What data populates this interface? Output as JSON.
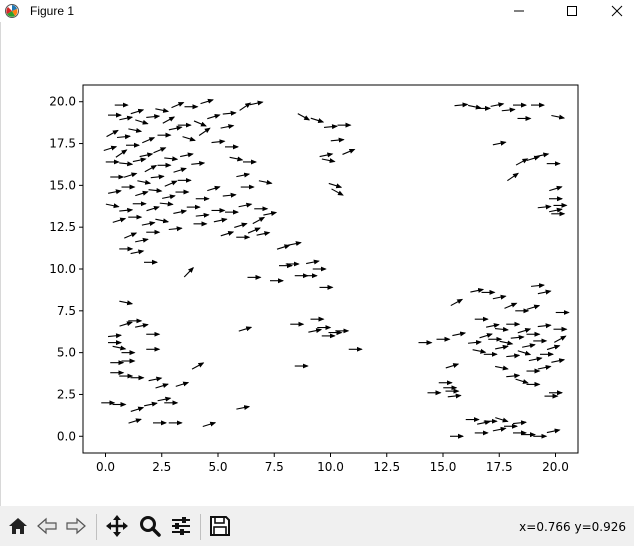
{
  "window": {
    "title": "Figure 1",
    "icons": {
      "app": "matplotlib-icon",
      "minimize": "minimize-icon",
      "maximize": "maximize-icon",
      "close": "close-icon"
    }
  },
  "toolbar": {
    "buttons": [
      {
        "name": "home-button",
        "icon": "home-icon"
      },
      {
        "name": "back-button",
        "icon": "back-arrow-icon"
      },
      {
        "name": "forward-button",
        "icon": "forward-arrow-icon"
      },
      {
        "name": "pan-button",
        "icon": "move-icon"
      },
      {
        "name": "zoom-button",
        "icon": "magnifier-icon"
      },
      {
        "name": "configure-subplots-button",
        "icon": "sliders-icon"
      },
      {
        "name": "save-button",
        "icon": "floppy-disk-icon"
      }
    ],
    "coordinates": "x=0.766 y=0.926"
  },
  "chart_data": {
    "type": "quiver",
    "xlim": [
      -1,
      21
    ],
    "ylim": [
      -1,
      21
    ],
    "xticks": [
      "0.0",
      "2.5",
      "5.0",
      "7.5",
      "10.0",
      "12.5",
      "15.0",
      "17.5",
      "20.0"
    ],
    "yticks": [
      "0.0",
      "2.5",
      "5.0",
      "7.5",
      "10.0",
      "12.5",
      "15.0",
      "17.5",
      "20.0"
    ],
    "grid": false,
    "arrow_color": "#000000",
    "arrows": [
      [
        0.7,
        19.8,
        0
      ],
      [
        1.4,
        19.4,
        0.3
      ],
      [
        2.5,
        19.5,
        -0.2
      ],
      [
        3.2,
        19.8,
        0.4
      ],
      [
        3.8,
        19.7,
        0
      ],
      [
        4.5,
        20.0,
        0.3
      ],
      [
        5.5,
        19.3,
        0.1
      ],
      [
        6.2,
        19.7,
        0.6
      ],
      [
        6.7,
        19.9,
        0.2
      ],
      [
        0.4,
        19.2,
        0
      ],
      [
        0.9,
        19.0,
        0.2
      ],
      [
        1.6,
        18.8,
        -0.3
      ],
      [
        2.1,
        19.1,
        0.1
      ],
      [
        2.8,
        18.9,
        0.5
      ],
      [
        3.5,
        18.6,
        0
      ],
      [
        4.2,
        18.7,
        -0.4
      ],
      [
        4.8,
        19.1,
        0.3
      ],
      [
        5.4,
        18.5,
        0.2
      ],
      [
        0.3,
        18.1,
        0.5
      ],
      [
        0.8,
        17.9,
        0.1
      ],
      [
        1.3,
        18.3,
        -0.2
      ],
      [
        1.9,
        17.7,
        0.4
      ],
      [
        2.6,
        18.0,
        0
      ],
      [
        3.1,
        18.4,
        0.2
      ],
      [
        3.7,
        17.8,
        -0.3
      ],
      [
        4.4,
        18.2,
        0.6
      ],
      [
        5.0,
        17.6,
        0.1
      ],
      [
        0.2,
        17.2,
        0.3
      ],
      [
        0.7,
        16.9,
        0.6
      ],
      [
        1.2,
        17.4,
        0
      ],
      [
        1.8,
        16.8,
        0.2
      ],
      [
        2.4,
        17.1,
        0.4
      ],
      [
        2.9,
        16.6,
        -0.1
      ],
      [
        3.6,
        16.8,
        0.2
      ],
      [
        5.6,
        17.3,
        0
      ],
      [
        0.3,
        16.4,
        0
      ],
      [
        0.9,
        16.3,
        -0.1
      ],
      [
        1.5,
        16.5,
        0.2
      ],
      [
        2.0,
        16.0,
        0.5
      ],
      [
        2.6,
        16.2,
        0
      ],
      [
        3.3,
        15.9,
        0.3
      ],
      [
        4.1,
        16.3,
        0.1
      ],
      [
        5.8,
        16.6,
        -0.2
      ],
      [
        6.4,
        16.4,
        0
      ],
      [
        0.5,
        15.5,
        0
      ],
      [
        1.1,
        15.6,
        0.3
      ],
      [
        1.7,
        15.2,
        -0.2
      ],
      [
        2.3,
        15.5,
        0.1
      ],
      [
        2.9,
        15.1,
        0.4
      ],
      [
        3.5,
        15.3,
        0
      ],
      [
        6.1,
        15.6,
        0.2
      ],
      [
        7.1,
        15.2,
        -0.2
      ],
      [
        0.4,
        14.6,
        0.2
      ],
      [
        1.0,
        14.9,
        0
      ],
      [
        1.6,
        14.5,
        0.3
      ],
      [
        2.2,
        14.7,
        -0.1
      ],
      [
        2.8,
        14.3,
        0.2
      ],
      [
        3.4,
        14.6,
        0
      ],
      [
        4.3,
        14.2,
        0
      ],
      [
        4.8,
        14.8,
        0.3
      ],
      [
        5.5,
        14.4,
        0.1
      ],
      [
        6.3,
        14.9,
        0
      ],
      [
        0.3,
        13.8,
        -0.2
      ],
      [
        0.9,
        13.5,
        0.1
      ],
      [
        1.5,
        13.9,
        0
      ],
      [
        2.1,
        13.6,
        0.3
      ],
      [
        2.7,
        13.9,
        -0.1
      ],
      [
        3.3,
        13.4,
        0.2
      ],
      [
        3.9,
        13.7,
        0
      ],
      [
        4.3,
        13.2,
        0.1
      ],
      [
        5.0,
        13.5,
        0
      ],
      [
        5.6,
        13.4,
        0
      ],
      [
        6.2,
        13.8,
        0.2
      ],
      [
        6.9,
        13.6,
        0
      ],
      [
        0.6,
        12.9,
        0.3
      ],
      [
        1.3,
        13.1,
        0
      ],
      [
        1.9,
        12.7,
        0.2
      ],
      [
        2.5,
        12.9,
        -0.2
      ],
      [
        3.1,
        12.4,
        0.1
      ],
      [
        4.2,
        12.7,
        0
      ],
      [
        5.1,
        12.9,
        0.2
      ],
      [
        6.0,
        12.6,
        0.3
      ],
      [
        6.8,
        12.9,
        0.5
      ],
      [
        7.3,
        13.3,
        0.2
      ],
      [
        1.1,
        12.0,
        0.4
      ],
      [
        1.6,
        11.7,
        0.2
      ],
      [
        2.1,
        12.2,
        0
      ],
      [
        5.4,
        12.1,
        0.3
      ],
      [
        6.1,
        11.9,
        0
      ],
      [
        6.6,
        12.3,
        0.4
      ],
      [
        7.0,
        12.1,
        0.2
      ],
      [
        0.9,
        11.2,
        0
      ],
      [
        1.4,
        11.0,
        0.2
      ],
      [
        2.0,
        10.4,
        0
      ],
      [
        3.7,
        9.8,
        0.8
      ],
      [
        6.6,
        9.5,
        0
      ],
      [
        7.9,
        11.3,
        0.3
      ],
      [
        8.4,
        11.5,
        0.2
      ],
      [
        8.0,
        10.2,
        0
      ],
      [
        8.3,
        10.3,
        0
      ],
      [
        9.2,
        10.4,
        0.2
      ],
      [
        9.5,
        10.0,
        0
      ],
      [
        9.1,
        9.6,
        0
      ],
      [
        8.7,
        9.6,
        0
      ],
      [
        9.8,
        8.9,
        0
      ],
      [
        7.6,
        9.3,
        0
      ],
      [
        8.8,
        19.1,
        -0.5
      ],
      [
        9.4,
        18.9,
        -0.3
      ],
      [
        10.0,
        18.5,
        0.1
      ],
      [
        10.6,
        18.6,
        0
      ],
      [
        10.3,
        17.7,
        0.1
      ],
      [
        10.8,
        17.0,
        0.4
      ],
      [
        9.8,
        16.8,
        0.2
      ],
      [
        9.9,
        16.5,
        -0.2
      ],
      [
        10.2,
        15.0,
        -0.3
      ],
      [
        10.3,
        14.6,
        -0.5
      ],
      [
        15.8,
        19.8,
        0.1
      ],
      [
        16.4,
        19.7,
        -0.2
      ],
      [
        16.8,
        19.6,
        0
      ],
      [
        17.4,
        19.8,
        0.2
      ],
      [
        17.9,
        19.5,
        0.1
      ],
      [
        18.4,
        19.8,
        0
      ],
      [
        19.2,
        19.8,
        0
      ],
      [
        20.1,
        19.1,
        -0.2
      ],
      [
        18.6,
        19.0,
        0
      ],
      [
        17.5,
        17.5,
        0.2
      ],
      [
        18.1,
        15.5,
        0.6
      ],
      [
        18.5,
        16.4,
        0.5
      ],
      [
        19.0,
        16.6,
        0.3
      ],
      [
        19.4,
        16.8,
        0.2
      ],
      [
        19.9,
        16.3,
        0
      ],
      [
        20.0,
        14.8,
        0.3
      ],
      [
        20.0,
        14.2,
        0
      ],
      [
        20.2,
        13.8,
        0
      ],
      [
        20.0,
        13.5,
        0.2
      ],
      [
        20.1,
        13.3,
        0
      ],
      [
        19.5,
        13.7,
        0.1
      ],
      [
        14.2,
        5.6,
        0
      ],
      [
        15.0,
        5.8,
        0
      ],
      [
        15.7,
        6.1,
        0.2
      ],
      [
        16.4,
        5.6,
        0.1
      ],
      [
        15.6,
        8.0,
        0.5
      ],
      [
        16.5,
        8.7,
        0.2
      ],
      [
        17.0,
        8.6,
        0
      ],
      [
        17.5,
        8.3,
        0.2
      ],
      [
        18.0,
        7.8,
        0.4
      ],
      [
        18.5,
        7.5,
        0
      ],
      [
        19.0,
        7.7,
        0.3
      ],
      [
        19.5,
        8.6,
        0.2
      ],
      [
        19.2,
        9.0,
        0.1
      ],
      [
        16.7,
        7.0,
        0
      ],
      [
        17.2,
        6.6,
        0.2
      ],
      [
        17.6,
        6.4,
        -0.1
      ],
      [
        18.1,
        6.7,
        0
      ],
      [
        18.6,
        6.3,
        0.3
      ],
      [
        19.0,
        6.1,
        0
      ],
      [
        19.5,
        6.6,
        0.1
      ],
      [
        20.2,
        6.4,
        0
      ],
      [
        20.3,
        7.4,
        0
      ],
      [
        16.9,
        6.0,
        0.3
      ],
      [
        17.3,
        5.8,
        0
      ],
      [
        17.8,
        5.6,
        -0.2
      ],
      [
        18.3,
        5.9,
        0.1
      ],
      [
        18.8,
        5.4,
        0.2
      ],
      [
        19.3,
        5.7,
        0
      ],
      [
        19.9,
        5.3,
        0.3
      ],
      [
        20.2,
        5.8,
        0.5
      ],
      [
        16.6,
        5.1,
        -0.2
      ],
      [
        17.1,
        4.9,
        0
      ],
      [
        17.6,
        5.3,
        0.2
      ],
      [
        18.1,
        4.8,
        0.1
      ],
      [
        18.6,
        5.0,
        -0.3
      ],
      [
        19.1,
        4.6,
        0.2
      ],
      [
        19.6,
        4.9,
        0
      ],
      [
        20.1,
        4.5,
        0.2
      ],
      [
        17.6,
        4.1,
        -0.2
      ],
      [
        18.1,
        3.6,
        0.1
      ],
      [
        18.5,
        3.3,
        -0.3
      ],
      [
        19.0,
        3.9,
        0
      ],
      [
        19.5,
        4.1,
        0.2
      ],
      [
        19.0,
        3.1,
        0
      ],
      [
        20.0,
        2.6,
        0
      ],
      [
        19.8,
        2.4,
        0
      ],
      [
        15.1,
        3.2,
        0
      ],
      [
        15.3,
        2.9,
        0
      ],
      [
        15.4,
        2.7,
        0
      ],
      [
        15.5,
        2.4,
        0.1
      ],
      [
        16.3,
        1.0,
        0
      ],
      [
        16.8,
        0.8,
        0.2
      ],
      [
        17.1,
        0.9,
        0
      ],
      [
        17.6,
        1.0,
        -0.3
      ],
      [
        18.0,
        0.6,
        0
      ],
      [
        18.4,
        0.8,
        0.1
      ],
      [
        16.7,
        0.2,
        0
      ],
      [
        17.5,
        0.4,
        0.2
      ],
      [
        18.4,
        0.2,
        0
      ],
      [
        18.8,
        0.1,
        0
      ],
      [
        19.3,
        0.0,
        0
      ],
      [
        19.9,
        0.3,
        0.2
      ],
      [
        15.6,
        0.0,
        0
      ],
      [
        14.6,
        2.6,
        0
      ],
      [
        15.4,
        4.2,
        0.3
      ],
      [
        0.4,
        6.0,
        0.1
      ],
      [
        0.9,
        6.7,
        0.3
      ],
      [
        1.3,
        6.9,
        0
      ],
      [
        1.6,
        6.6,
        0.2
      ],
      [
        2.1,
        6.1,
        0
      ],
      [
        0.4,
        5.6,
        0
      ],
      [
        0.6,
        5.3,
        -0.2
      ],
      [
        1.0,
        5.0,
        0
      ],
      [
        2.1,
        5.2,
        0
      ],
      [
        0.5,
        4.4,
        0
      ],
      [
        1.0,
        4.5,
        0
      ],
      [
        0.5,
        3.8,
        0
      ],
      [
        0.9,
        3.6,
        0
      ],
      [
        1.4,
        3.5,
        0
      ],
      [
        2.2,
        3.4,
        0.2
      ],
      [
        2.5,
        3.0,
        0.3
      ],
      [
        3.4,
        3.1,
        0.3
      ],
      [
        4.1,
        4.2,
        0.5
      ],
      [
        0.1,
        2.0,
        0
      ],
      [
        0.6,
        1.9,
        0
      ],
      [
        1.4,
        1.6,
        0.3
      ],
      [
        2.0,
        1.9,
        0.2
      ],
      [
        2.6,
        2.2,
        0.2
      ],
      [
        2.9,
        2.0,
        0
      ],
      [
        1.3,
        0.9,
        0.3
      ],
      [
        2.4,
        0.8,
        0
      ],
      [
        3.1,
        0.8,
        0
      ],
      [
        4.6,
        0.7,
        0.3
      ],
      [
        6.1,
        1.7,
        0.2
      ],
      [
        6.2,
        6.4,
        0.3
      ],
      [
        8.7,
        4.2,
        0
      ],
      [
        8.5,
        6.7,
        0
      ],
      [
        9.4,
        7.0,
        0
      ],
      [
        9.7,
        6.5,
        0
      ],
      [
        10.2,
        6.2,
        0
      ],
      [
        9.3,
        6.3,
        0.2
      ],
      [
        9.9,
        6.0,
        0
      ],
      [
        10.5,
        6.3,
        0
      ],
      [
        11.1,
        5.2,
        0
      ],
      [
        0.9,
        8.0,
        -0.2
      ]
    ]
  }
}
